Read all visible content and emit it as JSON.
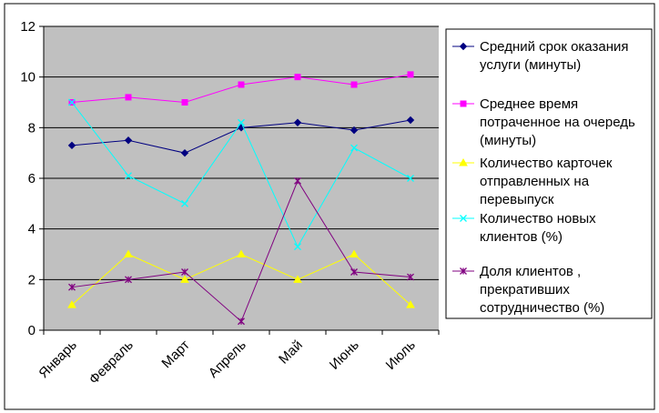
{
  "chart_data": {
    "type": "line",
    "title": "",
    "xlabel": "",
    "ylabel": "",
    "categories": [
      "Январь",
      "Февраль",
      "Март",
      "Апрель",
      "Май",
      "Июнь",
      "Июль"
    ],
    "ylim": [
      0,
      12
    ],
    "yticks": [
      "0",
      "2",
      "4",
      "6",
      "8",
      "10",
      "12"
    ],
    "grid": "horizontal",
    "plot_background": "#C0C0C0",
    "legend_position": "right",
    "series": [
      {
        "name": "Средний срок оказания услуги (минуты)",
        "legend_lines": [
          "Средний срок оказания",
          "услуги (минуты)"
        ],
        "color": "#000080",
        "marker": "diamond",
        "values": [
          7.3,
          7.5,
          7.0,
          8.0,
          8.2,
          7.9,
          8.3
        ]
      },
      {
        "name": "Среднее время потраченное на очередь (минуты)",
        "legend_lines": [
          "Среднее время",
          "потраченное на очередь",
          "(минуты)"
        ],
        "color": "#FF00FF",
        "marker": "square",
        "values": [
          9.0,
          9.2,
          9.0,
          9.7,
          10.0,
          9.7,
          10.1
        ]
      },
      {
        "name": "Количество карточек отправленных на перевыпуск",
        "legend_lines": [
          "Количество карточек",
          "отправленных на",
          "перевыпуск"
        ],
        "color": "#FFFF00",
        "marker": "triangle",
        "values": [
          1.0,
          3.0,
          2.0,
          3.0,
          2.0,
          3.0,
          1.0
        ]
      },
      {
        "name": "Количество новых клиентов (%)",
        "legend_lines": [
          "Количество новых",
          "клиентов (%)"
        ],
        "color": "#00FFFF",
        "marker": "x",
        "values": [
          9.0,
          6.1,
          5.0,
          8.2,
          3.3,
          7.2,
          6.0
        ]
      },
      {
        "name": "Доля клиентов , прекративших сотрудничество (%)",
        "legend_lines": [
          "Доля клиентов ,",
          "прекративших",
          "сотрудничество (%)"
        ],
        "color": "#800080",
        "marker": "star",
        "values": [
          1.7,
          2.0,
          2.3,
          0.35,
          5.9,
          2.3,
          2.1
        ]
      }
    ]
  }
}
